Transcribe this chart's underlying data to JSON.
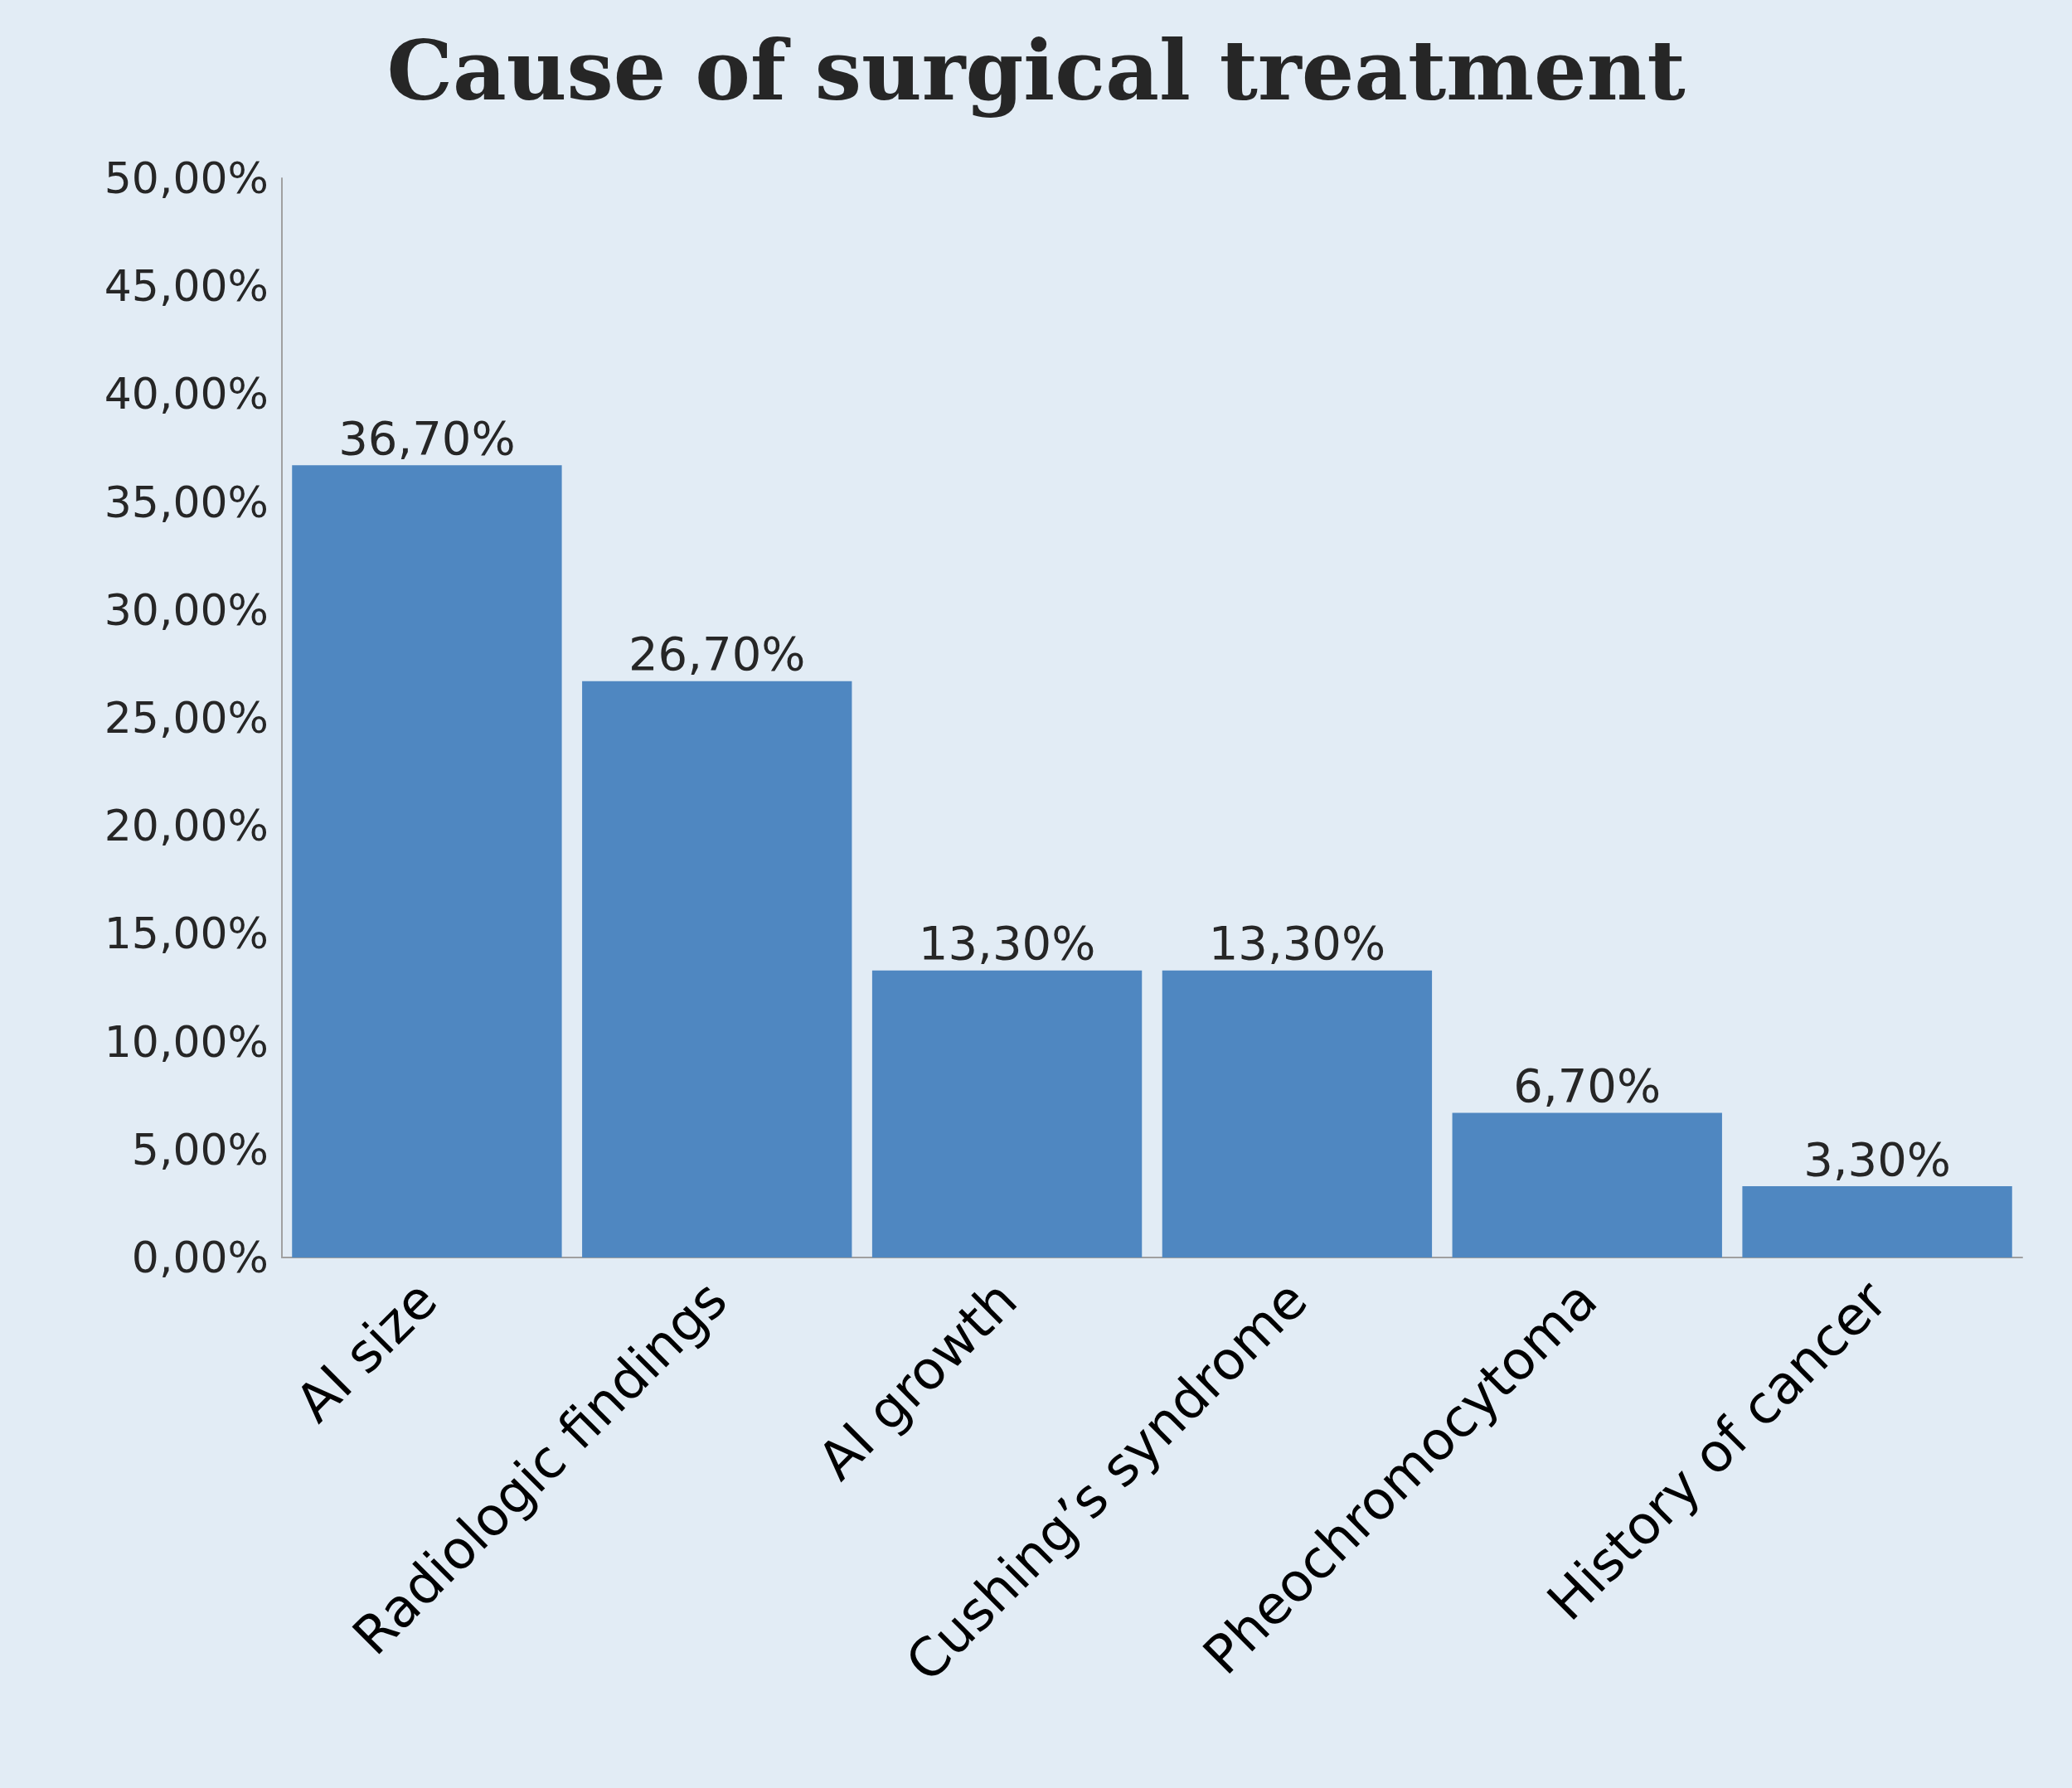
{
  "chart_data": {
    "type": "bar",
    "title": "Cause of surgical treatment",
    "categories": [
      "AI size",
      "Radiologic findings",
      "AI growth",
      "Cushing’s syndrome",
      "Pheochromocytoma",
      "History of cancer"
    ],
    "values": [
      36.7,
      26.7,
      13.3,
      13.3,
      6.7,
      3.3
    ],
    "value_labels": [
      "36,70%",
      "26,70%",
      "13,30%",
      "13,30%",
      "6,70%",
      "3,30%"
    ],
    "color": "#4f87c1",
    "ylim": [
      0,
      50
    ],
    "yticks": [
      {
        "value": 0,
        "label": "0,00%"
      },
      {
        "value": 5,
        "label": "5,00%"
      },
      {
        "value": 10,
        "label": "10,00%"
      },
      {
        "value": 15,
        "label": "15,00%"
      },
      {
        "value": 20,
        "label": "20,00%"
      },
      {
        "value": 25,
        "label": "25,00%"
      },
      {
        "value": 30,
        "label": "30,00%"
      },
      {
        "value": 35,
        "label": "35,00%"
      },
      {
        "value": 40,
        "label": "40,00%"
      },
      {
        "value": 45,
        "label": "45,00%"
      },
      {
        "value": 50,
        "label": "50,00%"
      }
    ],
    "grid": false
  }
}
